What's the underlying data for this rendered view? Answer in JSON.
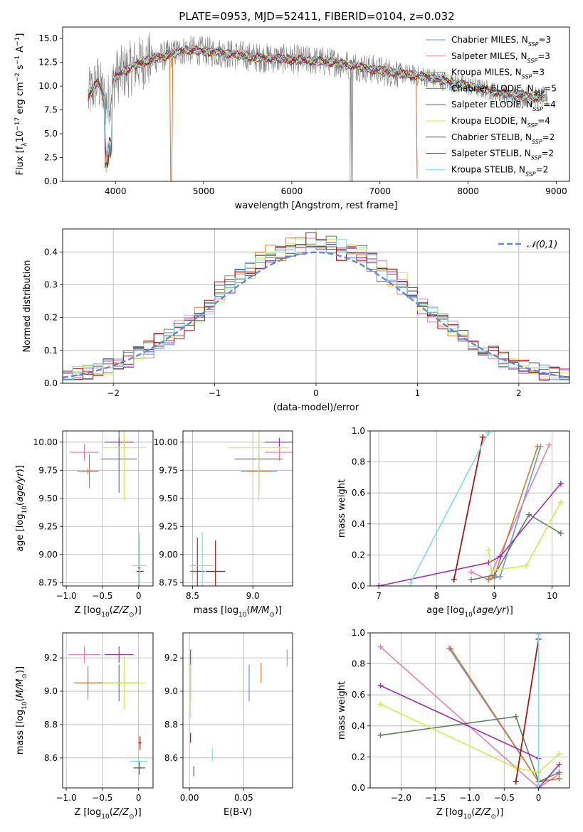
{
  "title": "PLATE=0953, MJD=52411, FIBERID=0104, z=0.032",
  "models": [
    {
      "name": "Chabrier MILES, N_SSP=3",
      "base": "Chabrier MILES, N",
      "sub": "SSP",
      "tail": "=3",
      "color": "#6495ed"
    },
    {
      "name": "Salpeter MILES, N_SSP=3",
      "base": "Salpeter MILES, N",
      "sub": "SSP",
      "tail": "=3",
      "color": "#e77fb0"
    },
    {
      "name": "Kroupa MILES, N_SSP=3",
      "base": "Kroupa MILES, N",
      "sub": "SSP",
      "tail": "=3",
      "color": "#d9772a"
    },
    {
      "name": "Chabrier ELODIE, N_SSP=5",
      "base": "Chabrier ELODIE, N",
      "sub": "SSP",
      "tail": "=5",
      "color": "#5f7f5f"
    },
    {
      "name": "Salpeter ELODIE, N_SSP=4",
      "base": "Salpeter ELODIE, N",
      "sub": "SSP",
      "tail": "=4",
      "color": "#9b30b0"
    },
    {
      "name": "Kroupa ELODIE, N_SSP=4",
      "base": "Kroupa ELODIE, N",
      "sub": "SSP",
      "tail": "=4",
      "color": "#d4ea4c"
    },
    {
      "name": "Chabrier STELIB, N_SSP=2",
      "base": "Chabrier STELIB, N",
      "sub": "SSP",
      "tail": "=2",
      "color": "#555555"
    },
    {
      "name": "Salpeter STELIB, N_SSP=2",
      "base": "Salpeter STELIB, N",
      "sub": "SSP",
      "tail": "=2",
      "color": "#aa1111"
    },
    {
      "name": "Kroupa STELIB, N_SSP=2",
      "base": "Kroupa STELIB, N",
      "sub": "SSP",
      "tail": "=2",
      "color": "#7fdbe0"
    }
  ],
  "chart_data": [
    {
      "type": "line",
      "id": "spectrum",
      "xlabel": "wavelength [Angstrom, rest frame]",
      "ylabel": "Flux [f_λ 10^-17 erg cm^-2 s^-1 A^-1]",
      "xlim": [
        3400,
        9150
      ],
      "ylim": [
        0,
        16.2
      ],
      "xticks": [
        4000,
        5000,
        6000,
        7000,
        8000,
        9000
      ],
      "yticks": [
        0.0,
        2.5,
        5.0,
        7.5,
        10.0,
        12.5,
        15.0
      ],
      "series_shape": [
        [
          3700,
          9.0
        ],
        [
          3800,
          10.5
        ],
        [
          3900,
          8.0
        ],
        [
          4000,
          11.0
        ],
        [
          4300,
          12.5
        ],
        [
          4800,
          13.8
        ],
        [
          5200,
          13.5
        ],
        [
          5600,
          13.0
        ],
        [
          6000,
          12.8
        ],
        [
          6500,
          12.5
        ],
        [
          7000,
          11.6
        ],
        [
          7500,
          11.0
        ],
        [
          8000,
          10.0
        ],
        [
          8500,
          9.0
        ],
        [
          8900,
          8.8
        ]
      ],
      "grid": false
    },
    {
      "type": "bar",
      "id": "residuals",
      "xlabel": "(data-model)/error",
      "ylabel": "Normed distribution",
      "xlim": [
        -2.5,
        2.5
      ],
      "ylim": [
        0,
        0.47
      ],
      "xticks": [
        -2,
        -1,
        0,
        1,
        2
      ],
      "yticks": [
        0.0,
        0.1,
        0.2,
        0.3,
        0.4
      ],
      "legend": "𝒩(0,1)",
      "grid": true
    },
    {
      "type": "scatter",
      "id": "age-vs-Z",
      "xlabel": "Z [log10(Z/Z⊙)]",
      "ylabel": "age [log10(age/yr)]",
      "xlim": [
        -1.05,
        0.2
      ],
      "ylim": [
        8.72,
        10.1
      ],
      "xticks": [
        -1.0,
        -0.5,
        0.0
      ],
      "yticks": [
        8.75,
        9.0,
        9.25,
        9.5,
        9.75,
        10.0
      ],
      "points": [
        {
          "model": 0,
          "x": -0.7,
          "y": 9.74,
          "ex": 0.15,
          "ey": 0.05
        },
        {
          "model": 1,
          "x": -0.75,
          "y": 9.91,
          "ex": 0.2,
          "ey": 0.15
        },
        {
          "model": 2,
          "x": -0.68,
          "y": 9.74,
          "ex": 0.1,
          "ey": 0.3
        },
        {
          "model": 3,
          "x": -0.27,
          "y": 9.85,
          "ex": 0.25,
          "ey": 0.6
        },
        {
          "model": 4,
          "x": -0.27,
          "y": 10.0,
          "ex": 0.2,
          "ey": 0.08
        },
        {
          "model": 5,
          "x": -0.2,
          "y": 9.95,
          "ex": 0.3,
          "ey": 0.95
        },
        {
          "model": 6,
          "x": 0.01,
          "y": 8.88,
          "ex": 0.02,
          "ey": 0.5
        },
        {
          "model": 7,
          "x": 0.02,
          "y": 8.85,
          "ex": 0.05,
          "ey": 0.0
        },
        {
          "model": 8,
          "x": 0.01,
          "y": 8.9,
          "ex": 0.1,
          "ey": 0.6
        }
      ]
    },
    {
      "type": "scatter",
      "id": "age-vs-mass",
      "xlabel": "mass [log10(M/M⊙)]",
      "ylabel": "",
      "xlim": [
        8.42,
        9.33
      ],
      "ylim": [
        8.72,
        10.1
      ],
      "xticks": [
        8.5,
        9.0
      ],
      "yticks": [
        8.75,
        9.0,
        9.25,
        9.5,
        9.75,
        10.0
      ],
      "points": [
        {
          "model": 0,
          "x": 9.05,
          "y": 9.74,
          "ex": 0.15,
          "ey": 0.05
        },
        {
          "model": 1,
          "x": 9.22,
          "y": 9.91,
          "ex": 0.12,
          "ey": 0.15
        },
        {
          "model": 2,
          "x": 9.05,
          "y": 9.74,
          "ex": 0.1,
          "ey": 0.3
        },
        {
          "model": 3,
          "x": 9.05,
          "y": 9.85,
          "ex": 0.2,
          "ey": 0.6
        },
        {
          "model": 4,
          "x": 9.22,
          "y": 10.0,
          "ex": 0.12,
          "ey": 0.08
        },
        {
          "model": 5,
          "x": 9.05,
          "y": 9.95,
          "ex": 0.25,
          "ey": 0.95
        },
        {
          "model": 6,
          "x": 8.54,
          "y": 8.85,
          "ex": 0.06,
          "ey": 0.6
        },
        {
          "model": 7,
          "x": 8.69,
          "y": 8.85,
          "ex": 0.08,
          "ey": 0.55
        },
        {
          "model": 8,
          "x": 8.58,
          "y": 8.9,
          "ex": 0.1,
          "ey": 0.6
        }
      ]
    },
    {
      "type": "line",
      "id": "massweight-vs-age",
      "xlabel": "age [log10(age/yr)]",
      "ylabel": "mass weight",
      "xlim": [
        6.85,
        10.3
      ],
      "ylim": [
        0,
        1.0
      ],
      "xticks": [
        7,
        8,
        9,
        10
      ],
      "yticks": [
        0.0,
        0.2,
        0.4,
        0.6,
        0.8,
        1.0
      ],
      "series": [
        {
          "model": 0,
          "points": [
            [
              8.9,
              0.04
            ],
            [
              9.1,
              0.06
            ],
            [
              9.8,
              0.9
            ]
          ]
        },
        {
          "model": 1,
          "points": [
            [
              8.6,
              0.09
            ],
            [
              8.9,
              0.04
            ],
            [
              9.95,
              0.91
            ]
          ]
        },
        {
          "model": 2,
          "points": [
            [
              8.9,
              0.04
            ],
            [
              9.0,
              0.06
            ],
            [
              9.75,
              0.9
            ]
          ]
        },
        {
          "model": 3,
          "points": [
            [
              8.6,
              0.04
            ],
            [
              9.0,
              0.07
            ],
            [
              9.6,
              0.46
            ],
            [
              10.15,
              0.34
            ]
          ]
        },
        {
          "model": 4,
          "points": [
            [
              7.0,
              0.0
            ],
            [
              8.9,
              0.15
            ],
            [
              9.1,
              0.19
            ],
            [
              10.15,
              0.66
            ]
          ]
        },
        {
          "model": 5,
          "points": [
            [
              8.9,
              0.23
            ],
            [
              8.95,
              0.1
            ],
            [
              9.55,
              0.13
            ],
            [
              10.15,
              0.54
            ]
          ]
        },
        {
          "model": 6,
          "points": [
            [
              8.3,
              0.04
            ],
            [
              8.8,
              0.96
            ]
          ]
        },
        {
          "model": 7,
          "points": [
            [
              8.3,
              0.04
            ],
            [
              8.8,
              0.96
            ]
          ]
        },
        {
          "model": 8,
          "points": [
            [
              7.55,
              0.02
            ],
            [
              8.9,
              0.99
            ]
          ]
        }
      ]
    },
    {
      "type": "scatter",
      "id": "mass-vs-Z",
      "xlabel": "Z [log10(Z/Z⊙)]",
      "ylabel": "mass [log10(M/M⊙)]",
      "xlim": [
        -1.05,
        0.2
      ],
      "ylim": [
        8.42,
        9.35
      ],
      "xticks": [
        -1.0,
        -0.5,
        0.0
      ],
      "yticks": [
        8.6,
        8.8,
        9.0,
        9.2
      ],
      "points": [
        {
          "model": 0,
          "x": -0.7,
          "y": 9.05,
          "ex": 0.2,
          "ey": 0.2
        },
        {
          "model": 1,
          "x": -0.75,
          "y": 9.22,
          "ex": 0.22,
          "ey": 0.1
        },
        {
          "model": 2,
          "x": -0.7,
          "y": 9.05,
          "ex": 0.18,
          "ey": 0.15
        },
        {
          "model": 3,
          "x": -0.27,
          "y": 9.05,
          "ex": 0.28,
          "ey": 0.22
        },
        {
          "model": 4,
          "x": -0.27,
          "y": 9.22,
          "ex": 0.2,
          "ey": 0.1
        },
        {
          "model": 5,
          "x": -0.2,
          "y": 9.05,
          "ex": 0.3,
          "ey": 0.32
        },
        {
          "model": 6,
          "x": 0.01,
          "y": 8.54,
          "ex": 0.08,
          "ey": 0.08
        },
        {
          "model": 7,
          "x": 0.02,
          "y": 8.69,
          "ex": 0.02,
          "ey": 0.08
        },
        {
          "model": 8,
          "x": 0.0,
          "y": 8.58,
          "ex": 0.12,
          "ey": 0.02
        }
      ]
    },
    {
      "type": "scatter",
      "id": "mass-vs-EBV",
      "xlabel": "E(B-V)",
      "ylabel": "",
      "xlim": [
        -0.006,
        0.095
      ],
      "ylim": [
        8.42,
        9.35
      ],
      "xticks": [
        0.0,
        0.05
      ],
      "yticks": [
        8.6,
        8.8,
        9.0,
        9.2
      ],
      "points": [
        {
          "model": 0,
          "x": 0.055,
          "y": 9.05,
          "ex": 0.0,
          "ey": 0.22
        },
        {
          "model": 1,
          "x": 0.09,
          "y": 9.2,
          "ex": 0.0,
          "ey": 0.1
        },
        {
          "model": 2,
          "x": 0.066,
          "y": 9.11,
          "ex": 0.0,
          "ey": 0.12
        },
        {
          "model": 3,
          "x": 0.001,
          "y": 9.05,
          "ex": 0.0,
          "ey": 0.22
        },
        {
          "model": 4,
          "x": 0.001,
          "y": 9.2,
          "ex": 0.0,
          "ey": 0.1
        },
        {
          "model": 5,
          "x": 0.001,
          "y": 9.0,
          "ex": 0.0,
          "ey": 0.32
        },
        {
          "model": 6,
          "x": 0.004,
          "y": 8.52,
          "ex": 0.0,
          "ey": 0.06
        },
        {
          "model": 7,
          "x": 0.001,
          "y": 8.72,
          "ex": 0.0,
          "ey": 0.06
        },
        {
          "model": 8,
          "x": 0.021,
          "y": 8.62,
          "ex": 0.0,
          "ey": 0.08
        }
      ]
    },
    {
      "type": "line",
      "id": "massweight-vs-Z",
      "xlabel": "Z [log10(Z/Z⊙)]",
      "ylabel": "mass weight",
      "xlim": [
        -2.45,
        0.45
      ],
      "ylim": [
        0,
        1.0
      ],
      "xticks": [
        -2.0,
        -1.5,
        -1.0,
        -0.5,
        0.0
      ],
      "yticks": [
        0.0,
        0.2,
        0.4,
        0.6,
        0.8,
        1.0
      ],
      "series": [
        {
          "model": 0,
          "points": [
            [
              -1.3,
              0.9
            ],
            [
              0.0,
              0.04
            ],
            [
              0.3,
              0.06
            ]
          ]
        },
        {
          "model": 1,
          "points": [
            [
              -2.3,
              0.91
            ],
            [
              0.0,
              0.0
            ],
            [
              0.3,
              0.09
            ]
          ]
        },
        {
          "model": 2,
          "points": [
            [
              -1.28,
              0.9
            ],
            [
              0.0,
              0.04
            ],
            [
              0.3,
              0.06
            ]
          ]
        },
        {
          "model": 3,
          "points": [
            [
              -2.3,
              0.34
            ],
            [
              -0.33,
              0.46
            ],
            [
              0.0,
              0.04
            ],
            [
              0.3,
              0.1
            ]
          ]
        },
        {
          "model": 4,
          "points": [
            [
              -2.3,
              0.66
            ],
            [
              0.0,
              0.19
            ],
            [
              0.0,
              0.0
            ],
            [
              0.3,
              0.15
            ]
          ]
        },
        {
          "model": 5,
          "points": [
            [
              -2.3,
              0.54
            ],
            [
              -0.33,
              0.13
            ],
            [
              0.0,
              0.1
            ],
            [
              0.3,
              0.22
            ]
          ]
        },
        {
          "model": 6,
          "points": [
            [
              0.0,
              0.96
            ],
            [
              -0.33,
              0.04
            ]
          ]
        },
        {
          "model": 7,
          "points": [
            [
              0.0,
              0.96
            ],
            [
              -0.33,
              0.04
            ]
          ]
        },
        {
          "model": 8,
          "points": [
            [
              0.0,
              0.99
            ],
            [
              0.0,
              0.02
            ]
          ]
        }
      ]
    }
  ]
}
